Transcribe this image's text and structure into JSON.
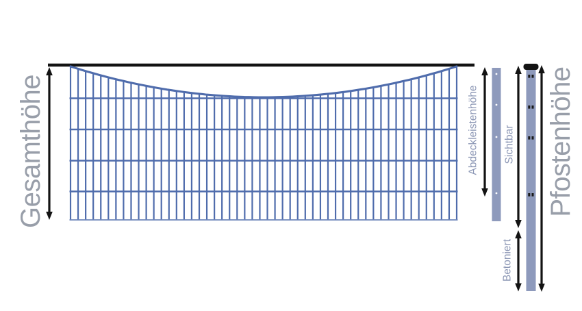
{
  "diagram": {
    "labels": {
      "gesamthoehe": "Gesamthöhe",
      "abdeckleistenhoehe": "Abdeckleistenhöhe",
      "sichtbar": "Sichtbar",
      "betoniert": "Betoniert",
      "pfostenhoehe": "Pfostenhöhe"
    },
    "colors": {
      "background": "#ffffff",
      "mesh_blue": "#4f6cac",
      "mesh_bottom_blue": "#6e86ba",
      "post_fill": "#8e9abc",
      "arrow_black": "#131313",
      "big_label": "#989ea9",
      "small_label": "#8c97b5"
    }
  }
}
